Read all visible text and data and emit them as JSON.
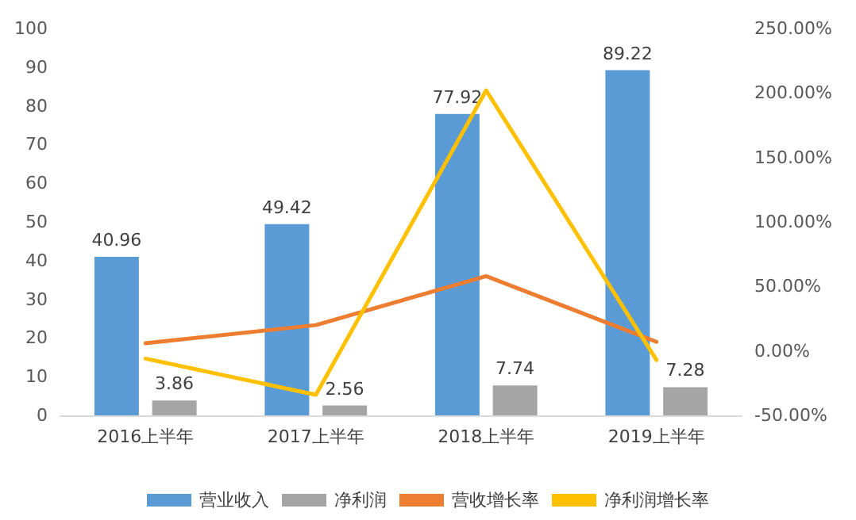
{
  "chart_data": {
    "type": "bar",
    "categories": [
      "2016上半年",
      "2017上半年",
      "2018上半年",
      "2019上半年"
    ],
    "series": [
      {
        "name": "营业收入",
        "color": "#5b9bd5",
        "values": [
          40.96,
          49.42,
          77.92,
          89.22
        ],
        "value_labels": [
          "40.96",
          "49.42",
          "77.92",
          "89.22"
        ]
      },
      {
        "name": "净利润",
        "color": "#a5a5a5",
        "values": [
          3.86,
          2.56,
          7.74,
          7.28
        ],
        "value_labels": [
          "3.86",
          "2.56",
          "7.74",
          "7.28"
        ]
      },
      {
        "name": "营收增长率",
        "type": "line",
        "axis": "y2",
        "color": "#ed7d31",
        "values": [
          6,
          20,
          58,
          7
        ]
      },
      {
        "name": "净利润增长率",
        "type": "line",
        "axis": "y2",
        "color": "#ffc000",
        "values": [
          -6,
          -34,
          202,
          -7
        ]
      }
    ],
    "ylim": [
      0,
      100
    ],
    "yticks": [
      0,
      10,
      20,
      30,
      40,
      50,
      60,
      70,
      80,
      90,
      100
    ],
    "y2lim": [
      -50,
      250
    ],
    "y2ticks": [
      {
        "value": -50,
        "label": "-50.00%"
      },
      {
        "value": 0,
        "label": "0.00%"
      },
      {
        "value": 50,
        "label": "50.00%"
      },
      {
        "value": 100,
        "label": "100.00%"
      },
      {
        "value": 150,
        "label": "150.00%"
      },
      {
        "value": 200,
        "label": "200.00%"
      },
      {
        "value": 250,
        "label": "250.00%"
      }
    ],
    "legend": "bottom",
    "grid": false,
    "marker": "none",
    "line_style": "solid"
  }
}
